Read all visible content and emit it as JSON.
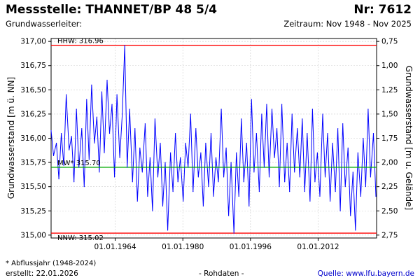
{
  "header": {
    "title": "Messstelle: THANNET/BP 48 5/4",
    "number": "Nr: 7612",
    "subtitle": "Grundwasserleiter:",
    "period": "Zeitraum: Nov 1948 - Nov 2025"
  },
  "footer": {
    "footnote": "* Abflussjahr (1948-2024)",
    "created": "erstellt:  22.01.2026",
    "raw_label": "- Rohdaten -",
    "source": "Quelle: www.lfu.bayern.de"
  },
  "colors": {
    "series": "#0000ff",
    "extreme_lines": "#ff0000",
    "mean_line": "#00aa00",
    "grid": "#cccccc"
  },
  "chart_data": {
    "type": "line",
    "ylabel_left": "Grundwasserstand [m ü. NN]",
    "ylabel_right": "Grundwasserstand [m u. Gelände]",
    "yticks_left": [
      "317,00",
      "316,75",
      "316,50",
      "316,25",
      "316,00",
      "315,75",
      "315,50",
      "315,25",
      "315,00"
    ],
    "yticks_right": [
      "0,75",
      "1,00",
      "1,25",
      "1,50",
      "1,75",
      "2,00",
      "2,25",
      "2,50",
      "2,75"
    ],
    "xticks": [
      "01.01.1964",
      "01.01.1980",
      "01.01.1996",
      "01.01.2012"
    ],
    "ylim": [
      314.97,
      317.03
    ],
    "xlim": [
      "1948-11-01",
      "2025-11-01"
    ],
    "grid": true,
    "reference_lines": [
      {
        "label": "HHW: 316.96",
        "value": 316.96,
        "kind": "max"
      },
      {
        "label": "MW* 315.70",
        "value": 315.7,
        "kind": "mean"
      },
      {
        "label": "NNW: 315.02",
        "value": 315.02,
        "kind": "min"
      }
    ],
    "series": [
      {
        "x": [
          "1948-11-01",
          "1949-06-01",
          "1950-02-01",
          "1950-09-01",
          "1951-04-01",
          "1951-11-01",
          "1952-06-01",
          "1953-02-01",
          "1953-09-01",
          "1954-04-01",
          "1954-11-01",
          "1955-06-01",
          "1956-02-01",
          "1956-09-01",
          "1957-04-01",
          "1957-11-01",
          "1958-06-01",
          "1959-02-01",
          "1959-09-01",
          "1960-04-01",
          "1960-11-01",
          "1961-06-01",
          "1962-02-01",
          "1962-09-01",
          "1963-04-01",
          "1963-11-01",
          "1964-06-01",
          "1965-02-01",
          "1965-09-01",
          "1966-04-01",
          "1966-11-01",
          "1967-06-01",
          "1968-02-01",
          "1968-09-01",
          "1969-04-01",
          "1969-11-01",
          "1970-06-01",
          "1971-02-01",
          "1971-09-01",
          "1972-04-01",
          "1972-11-01",
          "1973-06-01",
          "1974-02-01",
          "1974-09-01",
          "1975-04-01",
          "1975-11-01",
          "1976-06-01",
          "1977-02-01",
          "1977-09-01",
          "1978-04-01",
          "1978-11-01",
          "1979-06-01",
          "1980-02-01",
          "1980-09-01",
          "1981-04-01",
          "1981-11-01",
          "1982-06-01",
          "1983-02-01",
          "1983-09-01",
          "1984-04-01",
          "1984-11-01",
          "1985-06-01",
          "1986-02-01",
          "1986-09-01",
          "1987-04-01",
          "1987-11-01",
          "1988-06-01",
          "1989-02-01",
          "1989-09-01",
          "1990-04-01",
          "1990-11-01",
          "1991-06-01",
          "1992-02-01",
          "1992-09-01",
          "1993-04-01",
          "1993-11-01",
          "1994-06-01",
          "1995-02-01",
          "1995-09-01",
          "1996-04-01",
          "1996-11-01",
          "1997-06-01",
          "1998-02-01",
          "1998-09-01",
          "1999-04-01",
          "1999-11-01",
          "2000-06-01",
          "2001-02-01",
          "2001-09-01",
          "2002-04-01",
          "2002-11-01",
          "2003-06-01",
          "2004-02-01",
          "2004-09-01",
          "2005-04-01",
          "2005-11-01",
          "2006-06-01",
          "2007-02-01",
          "2007-09-01",
          "2008-04-01",
          "2008-11-01",
          "2009-06-01",
          "2010-02-01",
          "2010-09-01",
          "2011-04-01",
          "2011-11-01",
          "2012-06-01",
          "2013-02-01",
          "2013-09-01",
          "2014-04-01",
          "2014-11-01",
          "2015-06-01",
          "2016-02-01",
          "2016-09-01",
          "2017-04-01",
          "2017-11-01",
          "2018-06-01",
          "2019-02-01",
          "2019-09-01",
          "2020-04-01",
          "2020-11-01",
          "2021-06-01",
          "2022-02-01",
          "2022-09-01",
          "2023-04-01",
          "2023-11-01",
          "2024-06-01",
          "2025-02-01",
          "2025-09-01"
        ],
        "values": [
          316.08,
          315.82,
          315.95,
          315.58,
          316.05,
          315.72,
          316.45,
          315.88,
          316.02,
          315.55,
          316.3,
          315.7,
          316.1,
          315.5,
          316.4,
          315.78,
          316.55,
          315.95,
          316.22,
          315.65,
          316.48,
          315.85,
          316.6,
          316.05,
          316.35,
          315.6,
          316.45,
          315.8,
          316.25,
          316.96,
          315.7,
          316.3,
          315.55,
          316.1,
          315.35,
          315.9,
          315.65,
          316.15,
          315.4,
          315.8,
          315.25,
          316.2,
          315.6,
          315.95,
          315.3,
          315.75,
          315.05,
          315.85,
          315.45,
          316.05,
          315.55,
          315.8,
          315.35,
          315.95,
          315.7,
          316.25,
          315.45,
          316.1,
          315.6,
          315.85,
          315.3,
          315.95,
          315.5,
          316.05,
          315.4,
          315.8,
          315.55,
          316.3,
          315.6,
          315.9,
          315.2,
          315.75,
          315.02,
          315.85,
          315.4,
          316.2,
          315.55,
          315.95,
          315.3,
          316.4,
          315.65,
          316.05,
          315.45,
          316.25,
          315.7,
          316.35,
          315.6,
          316.3,
          315.8,
          316.1,
          315.5,
          316.35,
          315.55,
          315.95,
          315.45,
          316.25,
          315.65,
          316.1,
          315.6,
          316.2,
          315.45,
          316.05,
          315.35,
          316.3,
          315.55,
          315.85,
          315.4,
          316.25,
          315.6,
          316.05,
          315.35,
          315.95,
          315.45,
          316.1,
          315.25,
          316.15,
          315.5,
          315.9,
          315.2,
          315.65,
          315.05,
          315.85,
          315.4,
          316.0,
          315.5,
          316.3,
          315.6,
          316.05,
          315.4
        ]
      }
    ]
  }
}
